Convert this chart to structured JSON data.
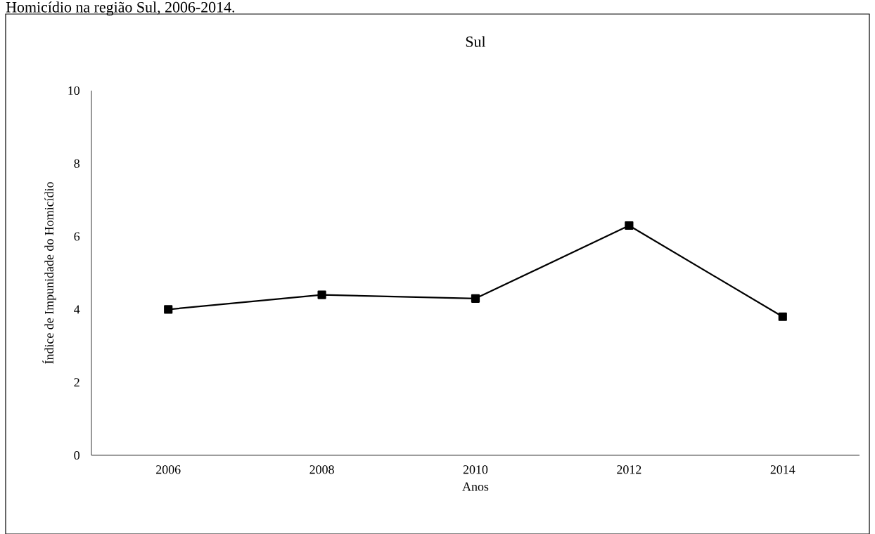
{
  "chart_data": {
    "type": "line",
    "title": "Sul",
    "annotations": [
      "Homicídio na região Sul, 2006-2014."
    ],
    "xlabel": "Anos",
    "ylabel": "Índice de Impunidade do Homicídio",
    "categories": [
      "2006",
      "2008",
      "2010",
      "2012",
      "2014"
    ],
    "series": [
      {
        "color": "#000000",
        "values": [
          4.0,
          4.4,
          4.3,
          6.3,
          3.8
        ]
      }
    ],
    "ylim": [
      0,
      10
    ],
    "yticks": [
      0,
      2,
      4,
      6,
      8,
      10
    ],
    "marker": "square",
    "line_style": "solid"
  }
}
